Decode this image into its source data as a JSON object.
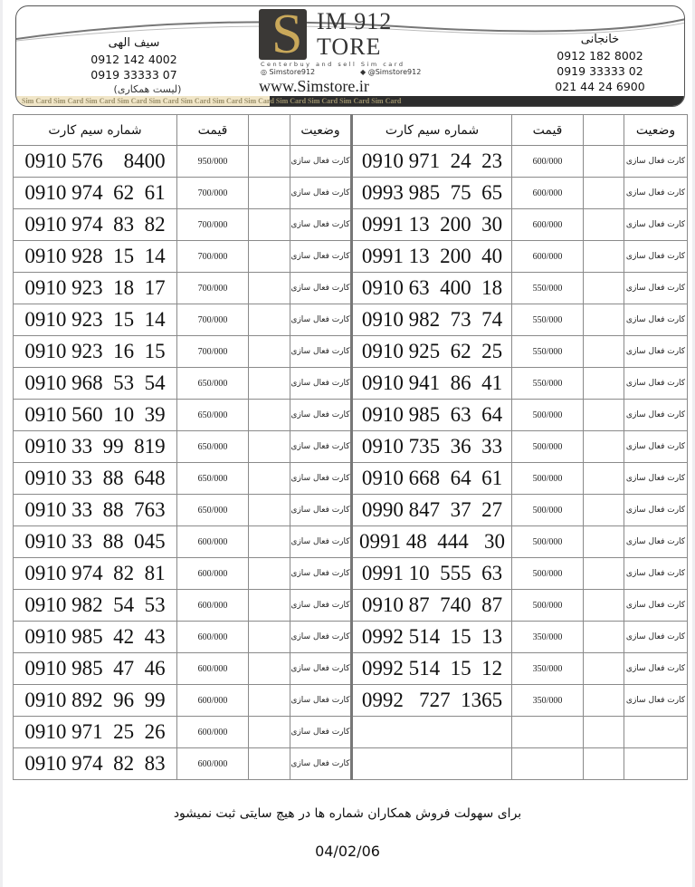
{
  "header": {
    "left_contact": {
      "name": "سیف الهی",
      "phones": [
        "0912 142 4002",
        "0919 33333 07"
      ]
    },
    "right_contact": {
      "name": "خانجانی",
      "phones": [
        "0912 182 8002",
        "0919 33333 02",
        "021 44 24 6900"
      ]
    },
    "list_label": "(لیست همکاری)",
    "logo": {
      "big_letter": "S",
      "line1": "IM 912",
      "line2": "TORE",
      "tagline": "Centerbuy and sell Sim card",
      "instagram": "Simstore912",
      "telegram": "@Simstore912",
      "website": "www.Simstore.ir"
    },
    "strip_text": "Sim Card  Sim Card  Sim Card  Sim Card  Sim Card  Sim Card  Sim Card  Sim Card  Sim Card  Sim Card  Sim Card  Sim Card"
  },
  "table": {
    "headers": {
      "number": "شماره سیم کارت",
      "price": "قیمت",
      "status": "وضعیت"
    },
    "left": [
      {
        "number": "0910 576    8400",
        "price": "950/000",
        "status": "کارت فعال سازی"
      },
      {
        "number": "0910 974  62  61",
        "price": "700/000",
        "status": "کارت فعال سازی"
      },
      {
        "number": "0910 974  83  82",
        "price": "700/000",
        "status": "کارت فعال سازی"
      },
      {
        "number": "0910 928  15  14",
        "price": "700/000",
        "status": "کارت فعال سازی"
      },
      {
        "number": "0910 923  18  17",
        "price": "700/000",
        "status": "کارت فعال سازی"
      },
      {
        "number": "0910 923  15  14",
        "price": "700/000",
        "status": "کارت فعال سازی"
      },
      {
        "number": "0910 923  16  15",
        "price": "700/000",
        "status": "کارت فعال سازی"
      },
      {
        "number": "0910 968  53  54",
        "price": "650/000",
        "status": "کارت فعال سازی"
      },
      {
        "number": "0910 560  10  39",
        "price": "650/000",
        "status": "کارت فعال سازی"
      },
      {
        "number": "0910 33  99  819",
        "price": "650/000",
        "status": "کارت فعال سازی"
      },
      {
        "number": "0910 33  88  648",
        "price": "650/000",
        "status": "کارت فعال سازی"
      },
      {
        "number": "0910 33  88  763",
        "price": "650/000",
        "status": "کارت فعال سازی"
      },
      {
        "number": "0910 33  88  045",
        "price": "600/000",
        "status": "کارت فعال سازی"
      },
      {
        "number": "0910 974  82  81",
        "price": "600/000",
        "status": "کارت فعال سازی"
      },
      {
        "number": "0910 982  54  53",
        "price": "600/000",
        "status": "کارت فعال سازی"
      },
      {
        "number": "0910 985  42  43",
        "price": "600/000",
        "status": "کارت فعال سازی"
      },
      {
        "number": "0910 985  47  46",
        "price": "600/000",
        "status": "کارت فعال سازی"
      },
      {
        "number": "0910 892  96  99",
        "price": "600/000",
        "status": "کارت فعال سازی"
      },
      {
        "number": "0910 971  25  26",
        "price": "600/000",
        "status": "کارت فعال سازی"
      },
      {
        "number": "0910 974  82  83",
        "price": "600/000",
        "status": "کارت فعال سازی"
      }
    ],
    "right": [
      {
        "number": "0910 971  24  23",
        "price": "600/000",
        "status": "کارت فعال سازی"
      },
      {
        "number": "0993 985  75  65",
        "price": "600/000",
        "status": "کارت فعال سازی"
      },
      {
        "number": "0991 13  200  30",
        "price": "600/000",
        "status": "کارت فعال سازی"
      },
      {
        "number": "0991 13  200  40",
        "price": "600/000",
        "status": "کارت فعال سازی"
      },
      {
        "number": "0910 63  400  18",
        "price": "550/000",
        "status": "کارت فعال سازی"
      },
      {
        "number": "0910 982  73  74",
        "price": "550/000",
        "status": "کارت فعال سازی"
      },
      {
        "number": "0910 925  62  25",
        "price": "550/000",
        "status": "کارت فعال سازی"
      },
      {
        "number": "0910 941  86  41",
        "price": "550/000",
        "status": "کارت فعال سازی"
      },
      {
        "number": "0910 985  63  64",
        "price": "500/000",
        "status": "کارت فعال سازی"
      },
      {
        "number": "0910 735  36  33",
        "price": "500/000",
        "status": "کارت فعال سازی"
      },
      {
        "number": "0910 668  64  61",
        "price": "500/000",
        "status": "کارت فعال سازی"
      },
      {
        "number": "0990 847  37  27",
        "price": "500/000",
        "status": "کارت فعال سازی"
      },
      {
        "number": "0991 48  444   30",
        "price": "500/000",
        "status": "کارت فعال سازی"
      },
      {
        "number": "0991 10  555  63",
        "price": "500/000",
        "status": "کارت فعال سازی"
      },
      {
        "number": "0910 87  740  87",
        "price": "500/000",
        "status": "کارت فعال سازی"
      },
      {
        "number": "0992 514  15  13",
        "price": "350/000",
        "status": "کارت فعال سازی"
      },
      {
        "number": "0992 514  15  12",
        "price": "350/000",
        "status": "کارت فعال سازی"
      },
      {
        "number": "0992   727  1365",
        "price": "350/000",
        "status": "کارت فعال سازی"
      }
    ]
  },
  "footer": {
    "note": "برای سهولت فروش همکاران شماره ها در هیچ سایتی ثبت نمیشود",
    "date": "04/02/06"
  }
}
